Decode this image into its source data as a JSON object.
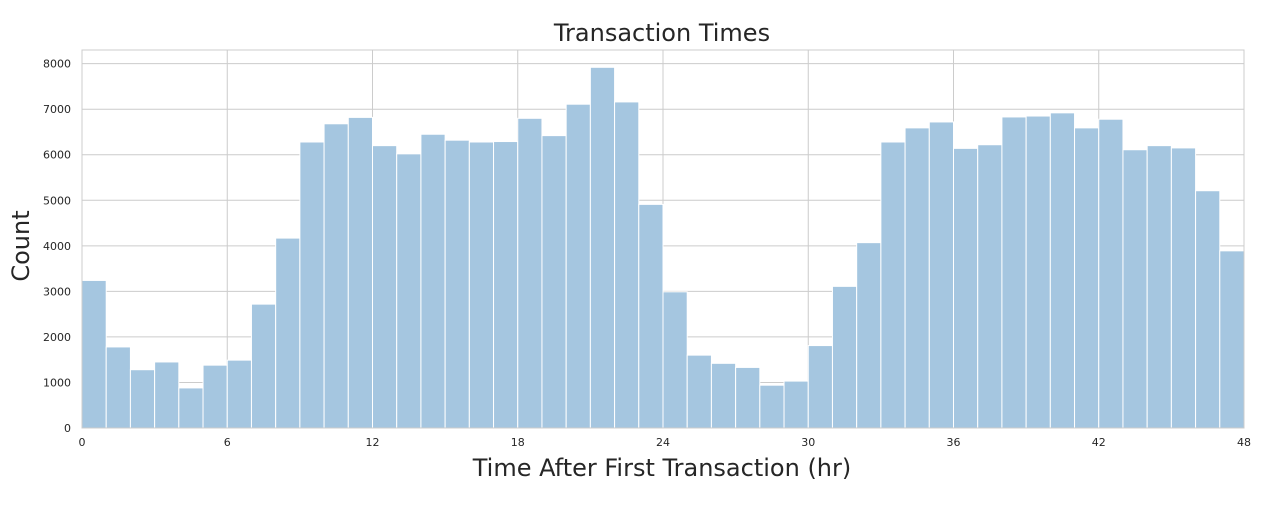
{
  "chart_data": {
    "type": "bar",
    "title": "Transaction Times",
    "xlabel": "Time After First Transaction (hr)",
    "ylabel": "Count",
    "xlim": [
      0,
      48
    ],
    "ylim": [
      0,
      8300
    ],
    "xticks": [
      0,
      6,
      12,
      18,
      24,
      30,
      36,
      42,
      48
    ],
    "yticks": [
      0,
      1000,
      2000,
      3000,
      4000,
      5000,
      6000,
      7000,
      8000
    ],
    "grid": true,
    "bin_width": 1,
    "bin_starts": [
      0,
      1,
      2,
      3,
      4,
      5,
      6,
      7,
      8,
      9,
      10,
      11,
      12,
      13,
      14,
      15,
      16,
      17,
      18,
      19,
      20,
      21,
      22,
      23,
      24,
      25,
      26,
      27,
      28,
      29,
      30,
      31,
      32,
      33,
      34,
      35,
      36,
      37,
      38,
      39,
      40,
      41,
      42,
      43,
      44,
      45,
      46,
      47
    ],
    "values": [
      3240,
      1780,
      1280,
      1450,
      880,
      1380,
      1490,
      2720,
      4170,
      6280,
      6680,
      6820,
      6200,
      6020,
      6450,
      6320,
      6280,
      6290,
      6800,
      6420,
      7110,
      7920,
      7160,
      4910,
      2990,
      1600,
      1420,
      1330,
      940,
      1030,
      1810,
      3110,
      4070,
      6280,
      6590,
      6720,
      6140,
      6220,
      6830,
      6850,
      6920,
      6590,
      6780,
      6110,
      6200,
      6150,
      5210,
      3890
    ],
    "bar_color": "#a5c6e0"
  }
}
